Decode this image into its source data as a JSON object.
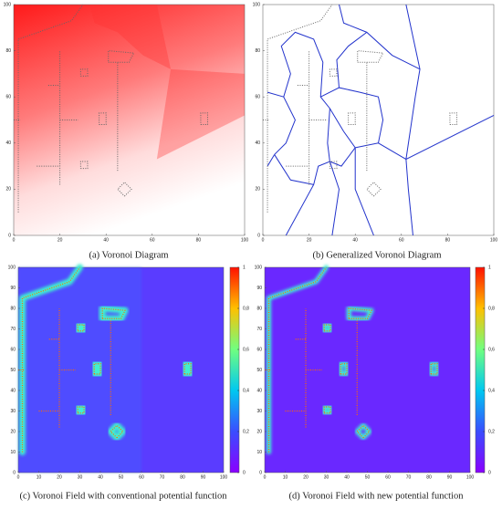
{
  "panels": [
    {
      "caption": "(a) Voronoi Diagram",
      "xlim": [
        0,
        100
      ],
      "ylim": [
        0,
        100
      ],
      "xticks": [
        0,
        20,
        40,
        60,
        80,
        100
      ],
      "yticks": [
        0,
        20,
        40,
        60,
        80,
        100
      ]
    },
    {
      "caption": "(b) Generalized Voronoi Diagram",
      "xlim": [
        0,
        100
      ],
      "ylim": [
        0,
        100
      ],
      "xticks": [
        0,
        20,
        40,
        60,
        80,
        100
      ],
      "yticks": [
        0,
        20,
        40,
        60,
        80,
        100
      ]
    },
    {
      "caption": "(c) Voronoi Field with conventional potential function",
      "xlim": [
        0,
        100
      ],
      "ylim": [
        0,
        100
      ],
      "xticks": [
        0,
        10,
        20,
        30,
        40,
        50,
        60,
        70,
        80,
        90,
        100
      ],
      "yticks": [
        0,
        10,
        20,
        30,
        40,
        50,
        60,
        70,
        80,
        90,
        100
      ],
      "clim": [
        0,
        1
      ],
      "colorbar_ticks": [
        0,
        {
          "value": 0.2,
          "label": "0,2"
        },
        {
          "value": 0.4,
          "label": "0,4"
        },
        {
          "value": 0.6,
          "label": "0,6"
        },
        {
          "value": 0.8,
          "label": "0,8"
        },
        1
      ]
    },
    {
      "caption": "(d) Voronoi Field with new potential function",
      "xlim": [
        0,
        100
      ],
      "ylim": [
        0,
        100
      ],
      "xticks": [
        0,
        10,
        20,
        30,
        40,
        50,
        60,
        70,
        80,
        90,
        100
      ],
      "yticks": [
        0,
        10,
        20,
        30,
        40,
        50,
        60,
        70,
        80,
        90,
        100
      ],
      "clim": [
        0,
        1
      ],
      "colorbar_ticks": [
        0,
        {
          "value": 0.2,
          "label": "0,2"
        },
        {
          "value": 0.4,
          "label": "0,4"
        },
        {
          "value": 0.6,
          "label": "0,6"
        },
        {
          "value": 0.8,
          "label": "0,8"
        },
        1
      ]
    }
  ]
}
